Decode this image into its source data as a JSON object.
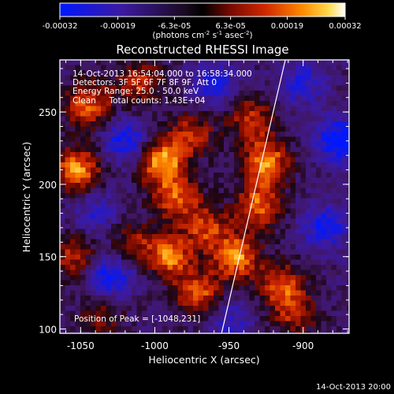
{
  "chart_data": {
    "type": "heatmap",
    "title": "Reconstructed RHESSI Image",
    "xlabel": "Heliocentric X (arcsec)",
    "ylabel": "Heliocentric Y (arcsec)",
    "xlim": [
      -1064,
      -869
    ],
    "ylim": [
      97,
      286
    ],
    "x_ticks": [
      "-1050",
      "-1000",
      "-950",
      "-900"
    ],
    "x_tick_values": [
      -1050,
      -1000,
      -950,
      -900
    ],
    "y_ticks": [
      "100",
      "150",
      "200",
      "250"
    ],
    "y_tick_values": [
      100,
      150,
      200,
      250
    ],
    "colorbar": {
      "ticks": [
        "-0.00032",
        "-0.00019",
        "-6.3e-05",
        "6.3e-05",
        "0.00019",
        "0.00032"
      ],
      "tick_values": [
        -0.00032,
        -0.00019,
        -6.3e-05,
        6.3e-05,
        0.00019,
        0.00032
      ],
      "range": [
        -0.00032,
        0.00032
      ],
      "unit_label": "(photons cm",
      "unit_exp1": "-2",
      "unit_mid": " s",
      "unit_exp2": "-1",
      "unit_tail": " asec",
      "unit_exp3": "-2",
      "unit_close": ")"
    },
    "annotations": {
      "line1": "14-Oct-2013 16:54:04.000 to 16:58:34.000",
      "line2": "Detectors: 3F 5F 6F 7F 8F 9F, Att 0",
      "line3": "Energy Range: 25.0 - 50.0 keV",
      "line4": "Clean     Total counts: 1.43E+04",
      "peak": "Position of Peak = [-1048,231]"
    },
    "limb_line": [
      [
        -955,
        97
      ],
      [
        -912,
        286
      ]
    ],
    "hotspots": [
      {
        "x": -1052,
        "y": 210,
        "v": 0.9
      },
      {
        "x": -1045,
        "y": 255,
        "v": 0.75
      },
      {
        "x": -1055,
        "y": 150,
        "v": 0.55
      },
      {
        "x": -1010,
        "y": 270,
        "v": 0.6
      },
      {
        "x": -995,
        "y": 215,
        "v": 0.95
      },
      {
        "x": -985,
        "y": 190,
        "v": 0.7
      },
      {
        "x": -975,
        "y": 235,
        "v": 0.55
      },
      {
        "x": -965,
        "y": 170,
        "v": 0.6
      },
      {
        "x": -990,
        "y": 150,
        "v": 0.8
      },
      {
        "x": -970,
        "y": 125,
        "v": 0.7
      },
      {
        "x": -945,
        "y": 150,
        "v": 0.85
      },
      {
        "x": -930,
        "y": 185,
        "v": 0.75
      },
      {
        "x": -925,
        "y": 215,
        "v": 0.9
      },
      {
        "x": -935,
        "y": 245,
        "v": 0.6
      },
      {
        "x": -915,
        "y": 130,
        "v": 0.7
      },
      {
        "x": -905,
        "y": 110,
        "v": 0.5
      },
      {
        "x": -1015,
        "y": 160,
        "v": 0.45
      },
      {
        "x": -1035,
        "y": 110,
        "v": 0.4
      }
    ],
    "coldspots": [
      {
        "x": -1030,
        "y": 135,
        "v": -0.7
      },
      {
        "x": -1020,
        "y": 230,
        "v": -0.6
      },
      {
        "x": -875,
        "y": 230,
        "v": -0.8
      },
      {
        "x": -885,
        "y": 170,
        "v": -0.6
      },
      {
        "x": -960,
        "y": 270,
        "v": -0.5
      },
      {
        "x": -1040,
        "y": 180,
        "v": -0.4
      },
      {
        "x": -900,
        "y": 270,
        "v": -0.5
      },
      {
        "x": -950,
        "y": 105,
        "v": -0.4
      }
    ]
  },
  "footer": {
    "timestamp": "14-Oct-2013 20:00"
  }
}
